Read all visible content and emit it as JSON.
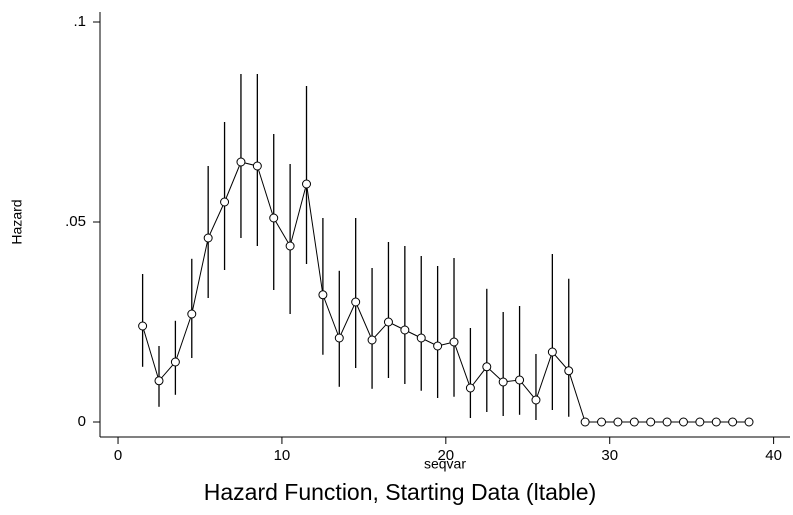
{
  "chart_data": {
    "type": "errorbar-line",
    "title": "Hazard Function, Starting Data (ltable)",
    "x_label": "seqvar",
    "y_label": "Hazard",
    "x": [
      1.5,
      2.5,
      3.5,
      4.5,
      5.5,
      6.5,
      7.5,
      8.5,
      9.5,
      10.5,
      11.5,
      12.5,
      13.5,
      14.5,
      15.5,
      16.5,
      17.5,
      18.5,
      19.5,
      20.5,
      21.5,
      22.5,
      23.5,
      24.5,
      25.5,
      26.5,
      27.5,
      28.5,
      29.5,
      30.5,
      31.5,
      32.5,
      33.5,
      34.5,
      35.5,
      36.5,
      37.5,
      38.5
    ],
    "values": [
      0.024,
      0.0103,
      0.015,
      0.027,
      0.046,
      0.055,
      0.065,
      0.064,
      0.051,
      0.044,
      0.0595,
      0.0318,
      0.021,
      0.03,
      0.0205,
      0.025,
      0.023,
      0.021,
      0.019,
      0.02,
      0.0085,
      0.0138,
      0.01,
      0.0105,
      0.0055,
      0.0175,
      0.0128,
      0,
      0,
      0,
      0,
      0,
      0,
      0,
      0,
      0,
      0,
      0
    ],
    "ci_lower": [
      0.0138,
      0.0038,
      0.0068,
      0.016,
      0.031,
      0.038,
      0.046,
      0.044,
      0.033,
      0.027,
      0.0395,
      0.0168,
      0.0088,
      0.0135,
      0.0083,
      0.011,
      0.0095,
      0.0078,
      0.006,
      0.0063,
      0.001,
      0.0025,
      0.0015,
      0.0018,
      0.0005,
      0.003,
      0.0013,
      null,
      null,
      null,
      null,
      null,
      null,
      null,
      null,
      null,
      null,
      null
    ],
    "ci_upper": [
      0.037,
      0.019,
      0.0253,
      0.0408,
      0.064,
      0.075,
      0.087,
      0.087,
      0.072,
      0.0645,
      0.084,
      0.051,
      0.0378,
      0.051,
      0.0385,
      0.045,
      0.044,
      0.0415,
      0.039,
      0.041,
      0.0235,
      0.0333,
      0.0275,
      0.029,
      0.017,
      0.042,
      0.0358,
      null,
      null,
      null,
      null,
      null,
      null,
      null,
      null,
      null,
      null,
      null
    ],
    "color": "#000000",
    "xlim": [
      -1.1,
      41
    ],
    "ylim": [
      -0.00375,
      0.10175
    ],
    "xticks": [
      0,
      10,
      20,
      30,
      40
    ],
    "yticks": [
      {
        "value": 0.1,
        "label": ".1"
      },
      {
        "value": 0.05,
        "label": ".05"
      },
      0
    ],
    "grid": false
  }
}
